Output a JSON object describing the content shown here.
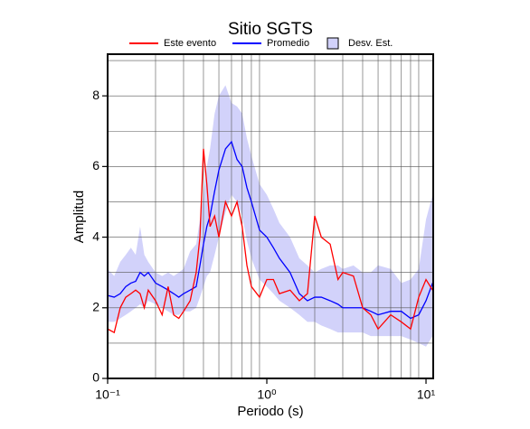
{
  "chart_data": {
    "type": "line",
    "title": "Sitio SGTS",
    "x_label": "Periodo (s)",
    "y_label": "Amplitud",
    "x_scale": "log",
    "grid": true,
    "legend": "top",
    "xlim": [
      0.1,
      11.1
    ],
    "ylim": [
      0,
      9.18
    ],
    "xticks": [
      {
        "value": 0.1,
        "label": "10⁻¹"
      },
      {
        "value": 1,
        "label": "10⁰"
      },
      {
        "value": 10,
        "label": "10¹"
      }
    ],
    "xminorticks": [
      0.2,
      0.3,
      0.4,
      0.5,
      0.6,
      0.7,
      0.8,
      0.9,
      2,
      3,
      4,
      5,
      6,
      7,
      8,
      9
    ],
    "yticks": [
      0,
      2,
      4,
      6,
      8
    ],
    "yminorticks": [
      1,
      3,
      5,
      7,
      9
    ],
    "x": [
      0.1,
      0.11,
      0.12,
      0.13,
      0.14,
      0.15,
      0.16,
      0.17,
      0.18,
      0.2,
      0.22,
      0.24,
      0.26,
      0.28,
      0.3,
      0.33,
      0.36,
      0.38,
      0.4,
      0.42,
      0.44,
      0.47,
      0.5,
      0.55,
      0.6,
      0.65,
      0.7,
      0.75,
      0.8,
      0.9,
      1.0,
      1.1,
      1.2,
      1.4,
      1.6,
      1.8,
      2.0,
      2.2,
      2.5,
      2.8,
      3.0,
      3.5,
      4,
      4.5,
      5,
      6,
      7,
      8,
      9,
      10,
      11
    ],
    "series": [
      {
        "name": "Desv. Est.",
        "kind": "band",
        "color": "#d2d2fa",
        "upper": [
          3.1,
          2.9,
          3.3,
          3.5,
          3.7,
          3.5,
          4.3,
          3.5,
          3.3,
          3.0,
          2.9,
          3.0,
          2.9,
          3.0,
          3.1,
          3.6,
          3.8,
          4.5,
          5.2,
          6.0,
          6.5,
          7.5,
          8.0,
          8.3,
          7.8,
          7.7,
          7.5,
          6.8,
          6.3,
          5.5,
          5.2,
          4.8,
          4.4,
          4.0,
          3.4,
          3.2,
          3.0,
          3.1,
          3.2,
          3.2,
          3.1,
          3.2,
          3.0,
          3.0,
          3.2,
          3.1,
          2.7,
          2.8,
          3.1,
          4.5,
          5.2
        ],
        "lower": [
          1.6,
          1.6,
          1.7,
          1.8,
          1.9,
          2.0,
          2.1,
          2.0,
          2.2,
          2.1,
          2.0,
          1.9,
          1.8,
          1.8,
          1.9,
          1.9,
          2.0,
          2.3,
          2.6,
          2.9,
          3.0,
          3.5,
          4.0,
          4.7,
          5.2,
          5.0,
          4.6,
          3.9,
          3.4,
          2.8,
          2.6,
          2.4,
          2.2,
          2.0,
          1.8,
          1.6,
          1.6,
          1.5,
          1.4,
          1.3,
          1.3,
          1.3,
          1.3,
          1.2,
          1.2,
          1.2,
          1.2,
          1.1,
          1.0,
          0.9,
          1.2
        ]
      },
      {
        "name": "Promedio",
        "kind": "line",
        "color": "#0000ff",
        "values": [
          2.35,
          2.3,
          2.4,
          2.6,
          2.7,
          2.75,
          3.0,
          2.9,
          3.0,
          2.7,
          2.6,
          2.5,
          2.4,
          2.3,
          2.4,
          2.5,
          2.6,
          3.2,
          3.8,
          4.3,
          4.6,
          5.3,
          5.9,
          6.5,
          6.7,
          6.2,
          6.0,
          5.4,
          5.0,
          4.2,
          4.0,
          3.7,
          3.4,
          3.0,
          2.4,
          2.2,
          2.3,
          2.3,
          2.2,
          2.1,
          2.0,
          2.0,
          2.0,
          1.9,
          1.8,
          1.9,
          1.9,
          1.7,
          1.8,
          2.2,
          2.7
        ]
      },
      {
        "name": "Este evento",
        "kind": "line",
        "color": "#ff0000",
        "values": [
          1.4,
          1.3,
          2.0,
          2.3,
          2.4,
          2.5,
          2.4,
          2.0,
          2.5,
          2.2,
          1.8,
          2.6,
          1.8,
          1.7,
          1.9,
          2.2,
          3.0,
          4.0,
          6.5,
          5.5,
          4.3,
          4.6,
          4.0,
          5.0,
          4.6,
          5.0,
          4.3,
          3.2,
          2.6,
          2.3,
          2.8,
          2.8,
          2.4,
          2.5,
          2.2,
          2.4,
          4.6,
          4.0,
          3.8,
          2.8,
          3.0,
          2.9,
          2.0,
          1.8,
          1.4,
          1.8,
          1.6,
          1.4,
          2.3,
          2.8,
          2.5
        ]
      }
    ]
  }
}
